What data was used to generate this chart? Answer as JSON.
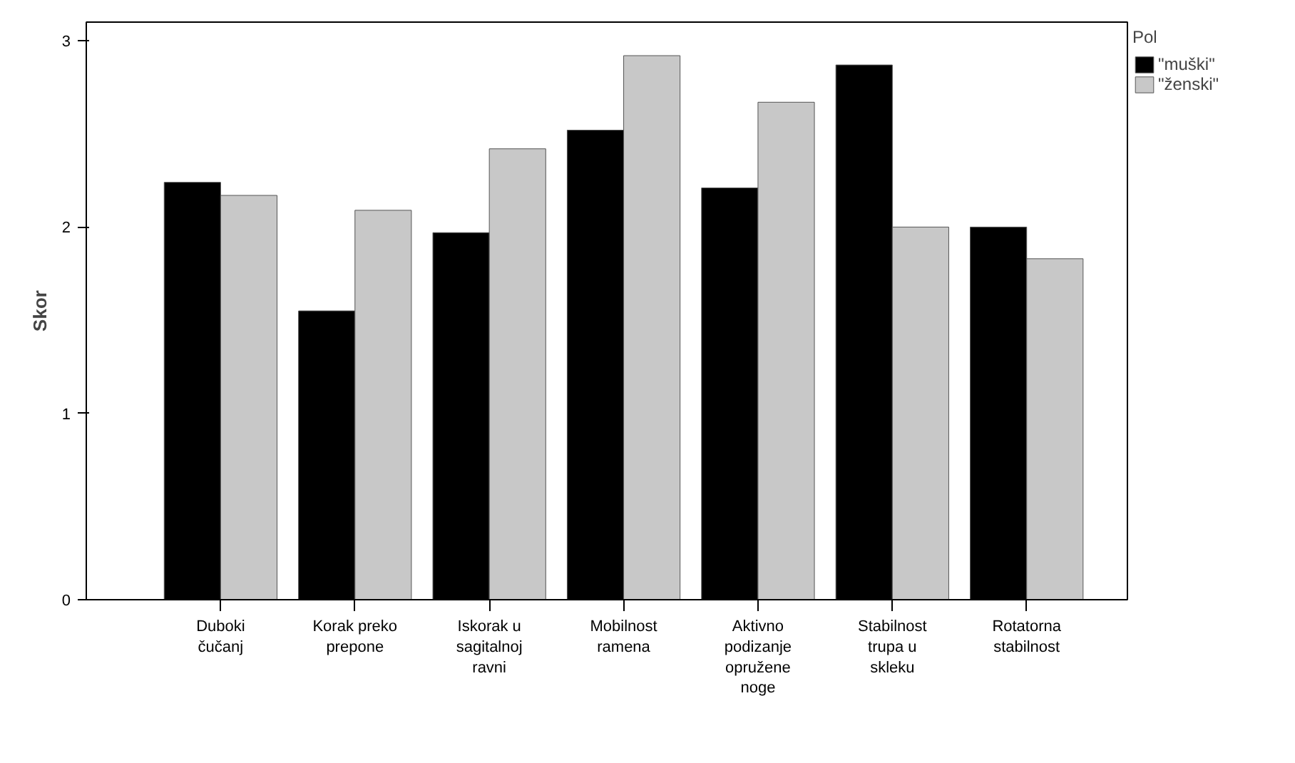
{
  "chart_data": {
    "type": "bar",
    "ylabel": "Skor",
    "legend_title": "Pol",
    "legend": "right",
    "grid": false,
    "categories": [
      "Duboki čučanj",
      "Korak preko prepone",
      "Iskorak u sagitalnoj ravni",
      "Mobilnost ramena",
      "Aktivno podizanje opružene noge",
      "Stabilnost trupa u skleku",
      "Rotatorna stabilnost"
    ],
    "ylim": [
      0,
      3.1
    ],
    "yticks": [
      0,
      1,
      2,
      3
    ],
    "series": [
      {
        "name": "\"muški\"",
        "color": "#000000",
        "values": [
          2.24,
          1.55,
          1.97,
          2.52,
          2.21,
          2.87,
          2.0
        ]
      },
      {
        "name": "\"ženski\"",
        "color": "#c8c8c8",
        "values": [
          2.17,
          2.09,
          2.42,
          2.92,
          2.67,
          2.0,
          1.83
        ]
      }
    ]
  }
}
